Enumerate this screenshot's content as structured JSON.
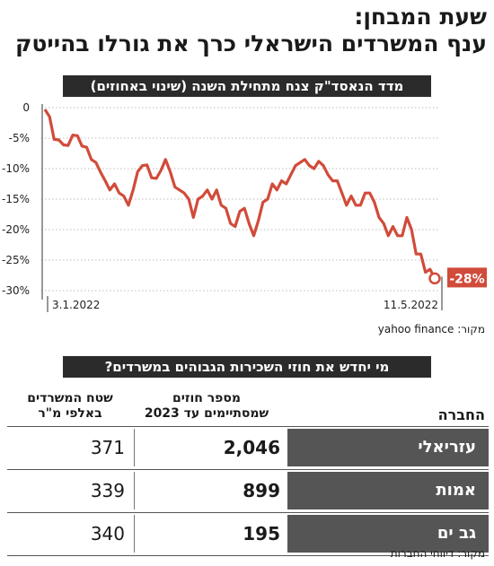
{
  "title": {
    "line1": "שעת המבחן:",
    "line2": "ענף המשרדים הישראלי כרך את גורלו בהייטק"
  },
  "chart_data": {
    "type": "line",
    "title": "מדד הנאסד\"ק צנח מתחילת השנה (שינוי באחוזים)",
    "ylim": [
      -30,
      0
    ],
    "yticks": [
      "0",
      "-5%",
      "-10%",
      "-15%",
      "-20%",
      "-25%",
      "-30%"
    ],
    "ytick_values": [
      0,
      -5,
      -10,
      -15,
      -20,
      -25,
      -30
    ],
    "start_label": "3.1.2022",
    "end_label": "11.5.2022",
    "end_value_label": "-28%",
    "line_color": "#d14b3a",
    "series": [
      {
        "values": [
          -0.3,
          -1.5,
          -5.2,
          -5.3,
          -6.1,
          -6.2,
          -4.5,
          -4.6,
          -6.3,
          -6.5,
          -8.5,
          -9.0,
          -10.6,
          -12.0,
          -13.5,
          -12.5,
          -14.0,
          -14.5,
          -16.0,
          -13.5,
          -10.5,
          -9.5,
          -9.4,
          -11.5,
          -11.6,
          -10.3,
          -8.5,
          -10.5,
          -13.0,
          -13.5,
          -14.0,
          -15.0,
          -18.0,
          -15.0,
          -14.5,
          -13.5,
          -15.0,
          -13.5,
          -16.0,
          -16.5,
          -19.0,
          -19.5,
          -17.0,
          -16.5,
          -19.0,
          -21.0,
          -18.5,
          -15.5,
          -15.0,
          -12.5,
          -13.5,
          -12.0,
          -12.5,
          -11.0,
          -9.5,
          -9.0,
          -8.5,
          -9.5,
          -10.0,
          -8.8,
          -9.5,
          -11.0,
          -12.0,
          -12.0,
          -14.0,
          -16.0,
          -14.5,
          -16.0,
          -16.0,
          -14.0,
          -14.0,
          -15.5,
          -18.0,
          -19.0,
          -21.0,
          -19.5,
          -21.0,
          -21.0,
          -18.0,
          -20.0,
          -24.0,
          -24.0,
          -27.0,
          -26.5,
          -28.0
        ]
      }
    ],
    "source": "מקור: yahoo finance"
  },
  "table": {
    "heading": "מי יחדש את חוזי השכירות הגבוהים במשרדים?",
    "columns": [
      "החברה",
      "מספר חוזים שמסתיימים עד 2023",
      "שטח המשרדים באלפי מ\"ר"
    ],
    "col_company": "החברה",
    "col_contracts_1": "מספר חוזים",
    "col_contracts_2": "שמסתיימים עד 2023",
    "col_area_1": "שטח המשרדים",
    "col_area_2": "באלפי מ\"ר",
    "rows": [
      {
        "company": "עזריאלי",
        "contracts": "2,046",
        "area": "371"
      },
      {
        "company": "אמות",
        "contracts": "899",
        "area": "339"
      },
      {
        "company": "גב ים",
        "contracts": "195",
        "area": "340"
      }
    ],
    "source": "מקור: דיווחי החברות"
  }
}
